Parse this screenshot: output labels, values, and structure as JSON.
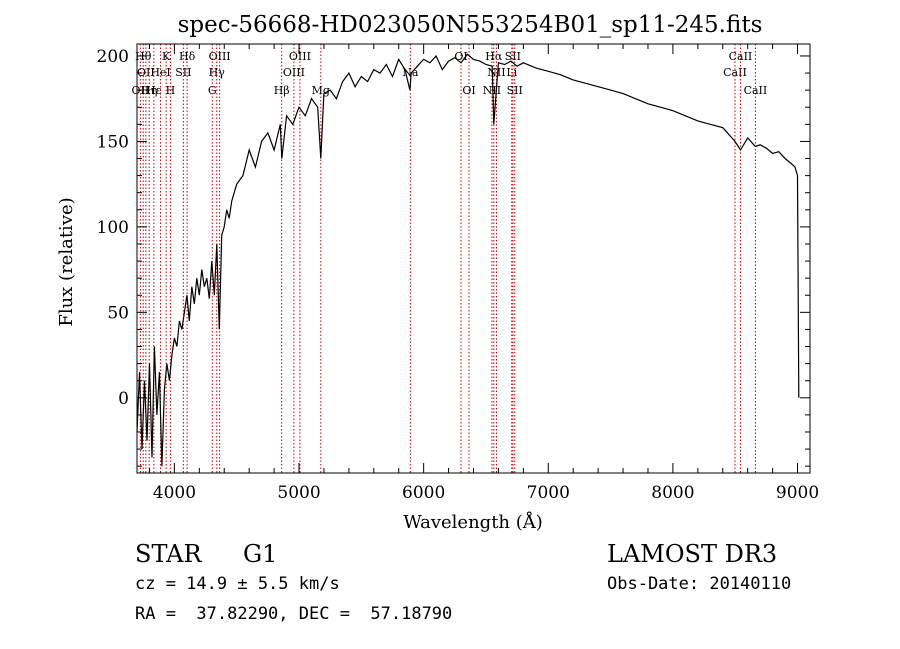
{
  "chart_data": {
    "type": "line",
    "title": "spec-56668-HD023050N553254B01_sp11-245.fits",
    "xlabel": "Wavelength (Å)",
    "ylabel": "Flux (relative)",
    "xlim": [
      3700,
      9100
    ],
    "ylim": [
      -44,
      207
    ],
    "xticks": [
      4000,
      5000,
      6000,
      7000,
      8000,
      9000
    ],
    "yticks": [
      0,
      50,
      100,
      150,
      200
    ],
    "series": [
      {
        "name": "flux",
        "x": [
          3700,
          3720,
          3740,
          3760,
          3780,
          3800,
          3820,
          3840,
          3860,
          3880,
          3900,
          3920,
          3940,
          3960,
          3980,
          4000,
          4020,
          4040,
          4060,
          4080,
          4100,
          4120,
          4140,
          4160,
          4180,
          4200,
          4220,
          4240,
          4260,
          4280,
          4300,
          4320,
          4340,
          4360,
          4380,
          4400,
          4420,
          4440,
          4460,
          4480,
          4500,
          4550,
          4600,
          4650,
          4700,
          4750,
          4800,
          4850,
          4862,
          4900,
          4950,
          5000,
          5050,
          5100,
          5150,
          5175,
          5200,
          5250,
          5300,
          5350,
          5400,
          5450,
          5500,
          5550,
          5600,
          5650,
          5700,
          5750,
          5800,
          5850,
          5890,
          5900,
          5950,
          6000,
          6050,
          6100,
          6150,
          6200,
          6250,
          6300,
          6350,
          6400,
          6450,
          6500,
          6550,
          6563,
          6600,
          6650,
          6700,
          6750,
          6800,
          6900,
          7000,
          7100,
          7200,
          7300,
          7400,
          7500,
          7600,
          7700,
          7800,
          7900,
          8000,
          8100,
          8200,
          8300,
          8400,
          8498,
          8542,
          8600,
          8662,
          8700,
          8750,
          8800,
          8850,
          8900,
          8950,
          8980,
          9000,
          9010
        ],
        "y": [
          -20,
          15,
          -30,
          10,
          -25,
          20,
          -35,
          30,
          -10,
          15,
          -40,
          5,
          20,
          10,
          25,
          35,
          30,
          45,
          40,
          50,
          60,
          45,
          65,
          55,
          70,
          60,
          75,
          65,
          70,
          58,
          80,
          60,
          90,
          40,
          95,
          100,
          110,
          105,
          115,
          120,
          125,
          130,
          145,
          135,
          150,
          155,
          145,
          160,
          140,
          165,
          160,
          170,
          165,
          175,
          170,
          140,
          178,
          180,
          175,
          185,
          190,
          182,
          188,
          185,
          192,
          190,
          195,
          188,
          198,
          192,
          180,
          190,
          194,
          198,
          196,
          200,
          192,
          197,
          199,
          196,
          201,
          198,
          197,
          195,
          194,
          160,
          196,
          195,
          197,
          194,
          196,
          193,
          191,
          189,
          186,
          184,
          182,
          180,
          178,
          175,
          172,
          170,
          168,
          165,
          162,
          160,
          158,
          150,
          145,
          152,
          147,
          148,
          146,
          143,
          144,
          140,
          137,
          135,
          130,
          0
        ]
      }
    ],
    "line_markers": [
      {
        "wavelength": 3727,
        "label": "OII",
        "row": 2
      },
      {
        "wavelength": 3750,
        "label": "Hθ",
        "row": 0
      },
      {
        "wavelength": 3771,
        "label": "OII",
        "row": 1
      },
      {
        "wavelength": 3798,
        "label": "Hη",
        "row": 2
      },
      {
        "wavelength": 3835,
        "label": "Hε",
        "row": 2
      },
      {
        "wavelength": 3889,
        "label": "HeI",
        "row": 1
      },
      {
        "wavelength": 3934,
        "label": "K",
        "row": 0
      },
      {
        "wavelength": 3968,
        "label": "H",
        "row": 2
      },
      {
        "wavelength": 4072,
        "label": "SII",
        "row": 1
      },
      {
        "wavelength": 4102,
        "label": "Hδ",
        "row": 0
      },
      {
        "wavelength": 4304,
        "label": "G",
        "row": 2
      },
      {
        "wavelength": 4340,
        "label": "Hγ",
        "row": 1
      },
      {
        "wavelength": 4363,
        "label": "OIII",
        "row": 0
      },
      {
        "wavelength": 4861,
        "label": "Hβ",
        "row": 2
      },
      {
        "wavelength": 4959,
        "label": "OIII",
        "row": 1
      },
      {
        "wavelength": 5007,
        "label": "OIII",
        "row": 0
      },
      {
        "wavelength": 5175,
        "label": "Mg",
        "row": 2
      },
      {
        "wavelength": 5893,
        "label": "Na",
        "row": 1
      },
      {
        "wavelength": 6300,
        "label": "OI",
        "row": 0
      },
      {
        "wavelength": 6364,
        "label": "OI",
        "row": 2
      },
      {
        "wavelength": 6548,
        "label": "NII",
        "row": 2
      },
      {
        "wavelength": 6563,
        "label": "Hα",
        "row": 0
      },
      {
        "wavelength": 6584,
        "label": "NII",
        "row": 1
      },
      {
        "wavelength": 6707,
        "label": "Li",
        "row": 1
      },
      {
        "wavelength": 6716,
        "label": "SII",
        "row": 0
      },
      {
        "wavelength": 6731,
        "label": "SII",
        "row": 2
      },
      {
        "wavelength": 8498,
        "label": "CaII",
        "row": 1
      },
      {
        "wavelength": 8542,
        "label": "CaII",
        "row": 0
      },
      {
        "wavelength": 8662,
        "label": "CaII",
        "row": 2
      }
    ],
    "grid": false,
    "legend": "none"
  },
  "info": {
    "object_class": "STAR",
    "subclass": "G1",
    "survey": "LAMOST DR3",
    "redshift": "cz = 14.9 ± 5.5 km/s",
    "obs_date": "Obs-Date: 20140110",
    "coords": "RA =  37.82290, DEC =  57.18790"
  },
  "colors": {
    "axis": "#000000",
    "spectrum": "#000000",
    "marker": "#c00000"
  }
}
